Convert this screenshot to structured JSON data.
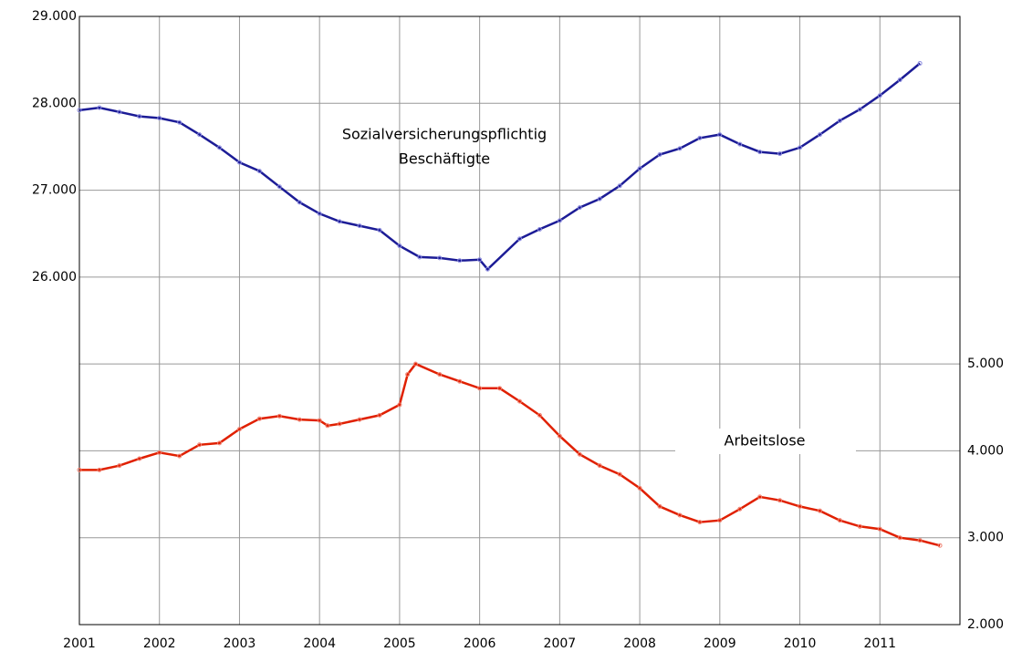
{
  "chart_data": {
    "type": "line",
    "annotations": [
      "Sozialversicherungspflichtig",
      "Beschäftigte",
      "Arbeitslose"
    ],
    "xlim": [
      2001,
      2012
    ],
    "xticks": [
      2001,
      2002,
      2003,
      2004,
      2005,
      2006,
      2007,
      2008,
      2009,
      2010,
      2011
    ],
    "ylim": [
      22000,
      29000
    ],
    "yticks": [
      {
        "value": 26000,
        "label": "26.000"
      },
      {
        "value": 27000,
        "label": "27.000"
      },
      {
        "value": 28000,
        "label": "28.000"
      },
      {
        "value": 29000,
        "label": "29.000"
      }
    ],
    "y2lim": [
      2000,
      9000
    ],
    "y2ticks": [
      {
        "value": 2000,
        "label": "2.000"
      },
      {
        "value": 3000,
        "label": "3.000"
      },
      {
        "value": 4000,
        "label": "4.000"
      },
      {
        "value": 5000,
        "label": "5.000"
      }
    ],
    "grid": true,
    "series": [
      {
        "color": "#1c1c96",
        "marker_color": "#8c8ce0",
        "x": [
          2001,
          2001.25,
          2001.5,
          2001.75,
          2002,
          2002.25,
          2002.5,
          2002.75,
          2003,
          2003.25,
          2003.5,
          2003.75,
          2004,
          2004.25,
          2004.5,
          2004.75,
          2005,
          2005.25,
          2005.5,
          2005.75,
          2006,
          2006.1,
          2006.5,
          2006.75,
          2007,
          2007.25,
          2007.5,
          2007.75,
          2008,
          2008.25,
          2008.5,
          2008.75,
          2009,
          2009.25,
          2009.5,
          2009.75,
          2010,
          2010.25,
          2010.5,
          2010.75,
          2011,
          2011.25,
          2011.5
        ],
        "values": [
          27920,
          27950,
          27900,
          27850,
          27830,
          27780,
          27640,
          27490,
          27320,
          27220,
          27040,
          26860,
          26730,
          26640,
          26590,
          26540,
          26360,
          26230,
          26220,
          26190,
          26200,
          26090,
          26440,
          26550,
          26650,
          26800,
          26900,
          27050,
          27250,
          27410,
          27480,
          27600,
          27640,
          27530,
          27440,
          27420,
          27490,
          27640,
          27800,
          27930,
          28090,
          28270,
          28460
        ]
      },
      {
        "color": "#e02000",
        "marker_color": "#f08070",
        "axis": "y2",
        "x": [
          2001,
          2001.25,
          2001.5,
          2001.75,
          2002,
          2002.25,
          2002.5,
          2002.75,
          2003,
          2003.25,
          2003.5,
          2003.75,
          2004,
          2004.1,
          2004.25,
          2004.5,
          2004.75,
          2005,
          2005.1,
          2005.2,
          2005.5,
          2005.75,
          2006,
          2006.25,
          2006.5,
          2006.75,
          2007,
          2007.25,
          2007.5,
          2007.75,
          2008,
          2008.25,
          2008.5,
          2008.75,
          2009,
          2009.25,
          2009.5,
          2009.75,
          2010,
          2010.25,
          2010.5,
          2010.75,
          2011,
          2011.25,
          2011.5,
          2011.75
        ],
        "values": [
          3780,
          3780,
          3830,
          3910,
          3980,
          3940,
          4070,
          4090,
          4250,
          4370,
          4400,
          4360,
          4350,
          4290,
          4310,
          4360,
          4410,
          4530,
          4880,
          5000,
          4880,
          4800,
          4720,
          4720,
          4570,
          4410,
          4170,
          3960,
          3830,
          3730,
          3570,
          3360,
          3260,
          3180,
          3200,
          3330,
          3470,
          3430,
          3360,
          3310,
          3200,
          3130,
          3100,
          3000,
          2970,
          2910
        ]
      }
    ]
  }
}
